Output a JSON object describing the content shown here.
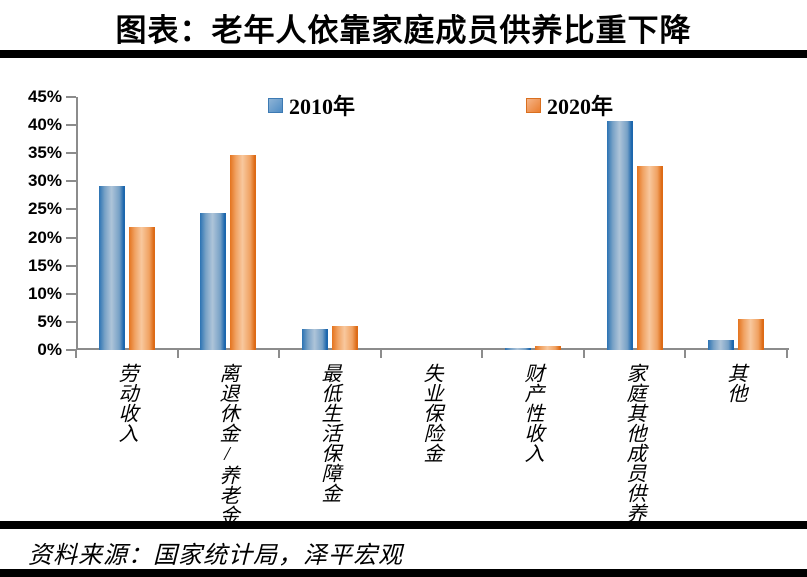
{
  "title": "图表：老年人依靠家庭成员供养比重下降",
  "source": "资料来源：国家统计局，泽平宏观",
  "colors": {
    "series_2010": "#2e75b6",
    "series_2020": "#ed7d31",
    "axis": "#8c8c8c",
    "rule": "#000000",
    "background": "#ffffff"
  },
  "chart_data": {
    "type": "bar",
    "title": "图表：老年人依靠家庭成员供养比重下降",
    "categories": [
      "劳动收入",
      "离退休金/养老金",
      "最低生活保障金",
      "失业保险金",
      "财产性收入",
      "家庭其他成员供养",
      "其他"
    ],
    "series": [
      {
        "name": "2010年",
        "color": "#2e75b6",
        "values": [
          29.1,
          24.3,
          3.8,
          0,
          0.4,
          40.7,
          1.8
        ]
      },
      {
        "name": "2020年",
        "color": "#ed7d31",
        "values": [
          21.9,
          34.7,
          4.2,
          0,
          0.7,
          32.7,
          5.5
        ]
      }
    ],
    "xlabel": "",
    "ylabel": "",
    "ylim": [
      0,
      45
    ],
    "ytick_step": 5,
    "ytick_labels": [
      "0%",
      "5%",
      "10%",
      "15%",
      "20%",
      "25%",
      "30%",
      "35%",
      "40%",
      "45%"
    ],
    "grid": false,
    "legend_position": "top-center"
  }
}
